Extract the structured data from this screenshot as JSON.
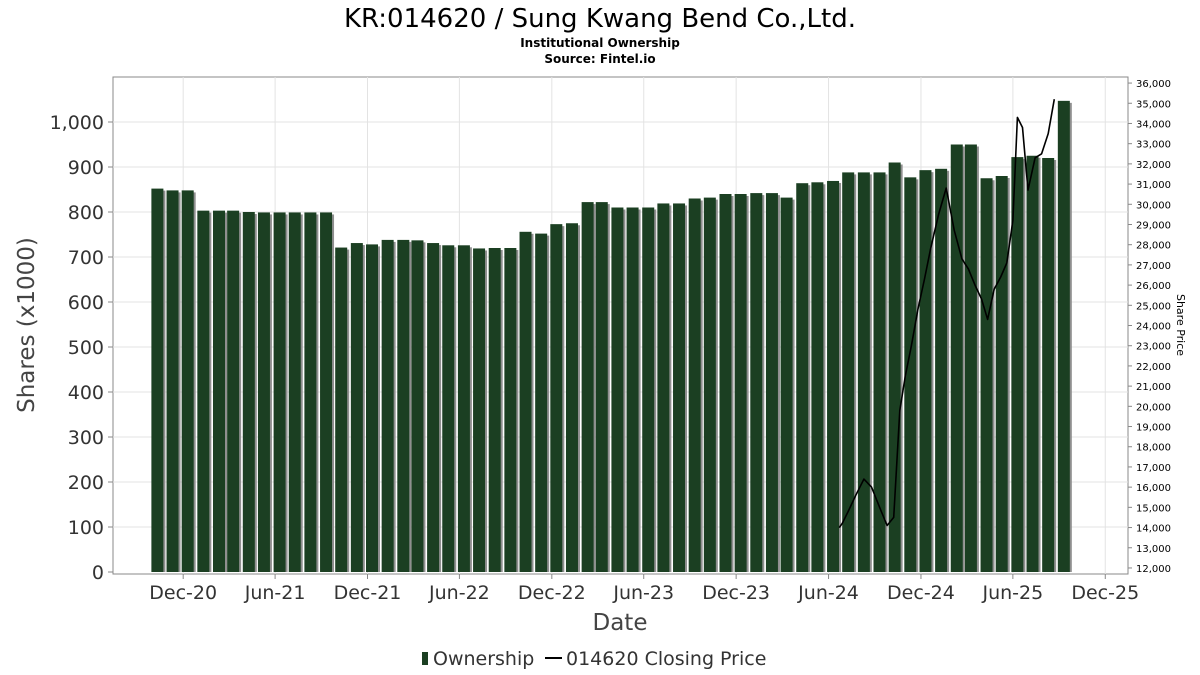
{
  "chart_data": {
    "type": "bar",
    "title": "KR:014620 / Sung Kwang Bend Co.,Ltd.",
    "subtitle": "Institutional Ownership",
    "source": "Source: Fintel.io",
    "xlabel": "Date",
    "ylabel": "Shares (x1000)",
    "ylabel_right": "Share Price",
    "ylim": [
      0,
      1100
    ],
    "ylim_right": [
      11800,
      36300
    ],
    "grid": true,
    "legend_position": "bottom",
    "y_ticks": [
      0,
      100,
      200,
      300,
      400,
      500,
      600,
      700,
      800,
      900,
      1000
    ],
    "y_tick_labels": [
      "0",
      "100",
      "200",
      "300",
      "400",
      "500",
      "600",
      "700",
      "800",
      "900",
      "1,000"
    ],
    "y_ticks_right": [
      12000,
      13000,
      14000,
      15000,
      16000,
      17000,
      18000,
      19000,
      20000,
      21000,
      22000,
      23000,
      24000,
      25000,
      26000,
      27000,
      28000,
      29000,
      30000,
      31000,
      32000,
      33000,
      34000,
      35000,
      36000
    ],
    "y_tick_labels_right": [
      "12,000",
      "13,000",
      "14,000",
      "15,000",
      "16,000",
      "17,000",
      "18,000",
      "19,000",
      "20,000",
      "21,000",
      "22,000",
      "23,000",
      "24,000",
      "25,000",
      "26,000",
      "27,000",
      "28,000",
      "29,000",
      "30,000",
      "31,000",
      "32,000",
      "33,000",
      "34,000",
      "35,000",
      "36,000"
    ],
    "x_ticks": [
      "2020-12-01",
      "2021-06-01",
      "2021-12-01",
      "2022-06-01",
      "2022-12-01",
      "2023-06-01",
      "2023-12-01",
      "2024-06-01",
      "2024-12-01",
      "2025-06-01",
      "2025-12-01"
    ],
    "x_tick_labels": [
      "Dec-20",
      "Jun-21",
      "Dec-21",
      "Jun-22",
      "Dec-22",
      "Jun-23",
      "Dec-23",
      "Jun-24",
      "Dec-24",
      "Jun-25",
      "Dec-25"
    ],
    "x_range": [
      "2020-07-15",
      "2026-01-15"
    ],
    "series": [
      {
        "name": "Ownership",
        "type": "bar",
        "color": "#1b3f22",
        "x": [
          "2020-10-01",
          "2020-10-31",
          "2020-11-30",
          "2020-12-31",
          "2021-01-31",
          "2021-02-28",
          "2021-03-31",
          "2021-04-30",
          "2021-05-31",
          "2021-06-30",
          "2021-07-31",
          "2021-08-31",
          "2021-09-30",
          "2021-10-31",
          "2021-11-30",
          "2021-12-31",
          "2022-01-31",
          "2022-02-28",
          "2022-03-31",
          "2022-04-30",
          "2022-05-31",
          "2022-06-30",
          "2022-07-31",
          "2022-08-31",
          "2022-09-30",
          "2022-10-31",
          "2022-11-30",
          "2022-12-31",
          "2023-01-31",
          "2023-02-28",
          "2023-03-31",
          "2023-04-30",
          "2023-05-31",
          "2023-06-30",
          "2023-07-31",
          "2023-08-31",
          "2023-09-30",
          "2023-10-31",
          "2023-11-30",
          "2023-12-31",
          "2024-01-31",
          "2024-02-29",
          "2024-03-31",
          "2024-04-30",
          "2024-05-31",
          "2024-06-30",
          "2024-07-31",
          "2024-08-31",
          "2024-09-30",
          "2024-10-31",
          "2024-11-30",
          "2024-12-31",
          "2025-01-31",
          "2025-02-28",
          "2025-03-31",
          "2025-04-30",
          "2025-05-31",
          "2025-06-30",
          "2025-07-31",
          "2025-08-31"
        ],
        "values": [
          852,
          848,
          848,
          803,
          803,
          803,
          800,
          799,
          799,
          799,
          799,
          799,
          721,
          731,
          728,
          738,
          738,
          737,
          731,
          726,
          726,
          719,
          720,
          720,
          756,
          752,
          773,
          775,
          822,
          822,
          810,
          810,
          810,
          819,
          819,
          830,
          832,
          840,
          840,
          842,
          842,
          832,
          864,
          866,
          869,
          888,
          888,
          888,
          910,
          877,
          893,
          896,
          950,
          950,
          875,
          880,
          922,
          925,
          920,
          1047
        ]
      },
      {
        "name": "014620 Closing Price",
        "type": "line",
        "axis": "right",
        "color": "#000000",
        "x": [
          "2024-06-22",
          "2024-06-28",
          "2024-07-10",
          "2024-07-25",
          "2024-08-10",
          "2024-08-25",
          "2024-09-10",
          "2024-09-25",
          "2024-10-08",
          "2024-10-20",
          "2024-10-31",
          "2024-11-12",
          "2024-11-25",
          "2024-12-08",
          "2024-12-20",
          "2025-01-05",
          "2025-01-20",
          "2025-02-05",
          "2025-02-20",
          "2025-03-05",
          "2025-03-18",
          "2025-03-31",
          "2025-04-12",
          "2025-04-25",
          "2025-05-08",
          "2025-05-20",
          "2025-06-01",
          "2025-06-10",
          "2025-06-20",
          "2025-07-01",
          "2025-07-15",
          "2025-07-28",
          "2025-08-10",
          "2025-08-22"
        ],
        "values": [
          14000,
          14200,
          14800,
          15600,
          16400,
          16000,
          15000,
          14100,
          14500,
          19800,
          21500,
          23000,
          24800,
          26300,
          27800,
          29500,
          30800,
          28700,
          27300,
          26800,
          26000,
          25300,
          24300,
          25800,
          26400,
          27100,
          29200,
          34300,
          33800,
          30700,
          32300,
          32500,
          33500,
          35200
        ]
      }
    ]
  }
}
